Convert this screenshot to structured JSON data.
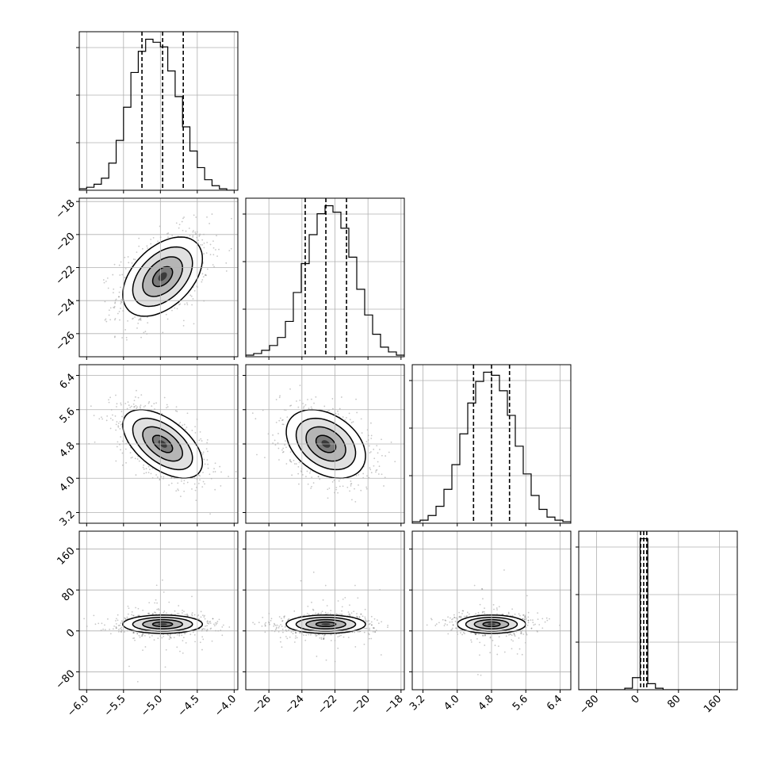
{
  "chart_data": {
    "type": "corner",
    "parameters": [
      {
        "range": [
          -6.1,
          -3.95
        ],
        "ticks": [
          -6.0,
          -5.5,
          -5.0,
          -4.5,
          -4.0
        ],
        "tick_labels": [
          "−6.0",
          "−5.5",
          "−5.0",
          "−4.5",
          "−4.0"
        ],
        "mean": -4.97,
        "sd": 0.27,
        "quantiles": [
          -5.25,
          -4.97,
          -4.69
        ]
      },
      {
        "range": [
          -27.4,
          -17.8
        ],
        "ticks": [
          -26,
          -24,
          -22,
          -20,
          -18
        ],
        "tick_labels": [
          "−26",
          "−24",
          "−22",
          "−20",
          "−18"
        ],
        "mean": -22.55,
        "sd": 1.2,
        "quantiles": [
          -23.8,
          -22.55,
          -21.3
        ]
      },
      {
        "range": [
          2.95,
          6.65
        ],
        "ticks": [
          3.2,
          4.0,
          4.8,
          5.6,
          6.4
        ],
        "tick_labels": [
          "3.2",
          "4.0",
          "4.8",
          "5.6",
          "6.4"
        ],
        "mean": 4.8,
        "sd": 0.4,
        "quantiles": [
          4.38,
          4.8,
          5.22
        ]
      },
      {
        "range": [
          -115,
          195
        ],
        "ticks": [
          -80,
          0,
          80,
          160
        ],
        "tick_labels": [
          "−80",
          "0",
          "80",
          "160"
        ],
        "mean": 13,
        "sd": 9,
        "quantiles": [
          6,
          12,
          18
        ]
      }
    ],
    "histograms": [
      {
        "param": 0,
        "edges": [
          -6.1,
          -6.0,
          -5.9,
          -5.8,
          -5.7,
          -5.6,
          -5.5,
          -5.4,
          -5.3,
          -5.2,
          -5.1,
          -5.0,
          -4.9,
          -4.8,
          -4.7,
          -4.6,
          -4.5,
          -4.4,
          -4.3,
          -4.2,
          -4.1,
          -4.0
        ],
        "counts": [
          1,
          2,
          4,
          8,
          18,
          33,
          55,
          78,
          92,
          100,
          98,
          95,
          79,
          62,
          42,
          26,
          15,
          7,
          3,
          1,
          0
        ]
      },
      {
        "param": 1,
        "edges": [
          -27.4,
          -26.92,
          -26.44,
          -25.96,
          -25.48,
          -25.0,
          -24.52,
          -24.04,
          -23.56,
          -23.08,
          -22.6,
          -22.12,
          -21.64,
          -21.16,
          -20.68,
          -20.2,
          -19.72,
          -19.24,
          -18.76,
          -18.28,
          -17.8
        ],
        "counts": [
          1,
          2,
          4,
          7,
          12,
          22,
          40,
          58,
          76,
          89,
          94,
          90,
          80,
          62,
          42,
          26,
          14,
          6,
          3,
          1
        ]
      },
      {
        "param": 2,
        "edges": [
          2.95,
          3.135,
          3.32,
          3.505,
          3.69,
          3.875,
          4.06,
          4.245,
          4.43,
          4.615,
          4.8,
          4.985,
          5.17,
          5.355,
          5.54,
          5.725,
          5.91,
          6.095,
          6.28,
          6.465,
          6.65
        ],
        "counts": [
          1,
          2,
          5,
          11,
          22,
          38,
          58,
          78,
          92,
          98,
          96,
          86,
          70,
          50,
          32,
          18,
          9,
          4,
          2,
          1
        ]
      },
      {
        "param": 3,
        "edges": [
          -115,
          -100,
          -85,
          -70,
          -55,
          -40,
          -25,
          -10,
          5,
          20,
          35,
          50,
          65,
          80,
          95,
          110,
          125,
          140,
          155,
          170,
          185
        ],
        "counts": [
          0,
          0,
          0,
          0,
          0,
          0,
          1,
          8,
          100,
          4,
          1,
          0,
          0,
          0,
          0,
          0,
          0,
          0,
          0,
          0
        ]
      }
    ],
    "pairs": [
      {
        "x": 0,
        "y": 1,
        "correlation": 0.45
      },
      {
        "x": 0,
        "y": 2,
        "correlation": -0.55
      },
      {
        "x": 1,
        "y": 2,
        "correlation": -0.35
      },
      {
        "x": 0,
        "y": 3,
        "correlation": 0.0
      },
      {
        "x": 1,
        "y": 3,
        "correlation": 0.0
      },
      {
        "x": 2,
        "y": 3,
        "correlation": 0.0
      }
    ],
    "contour_levels_sigma": [
      0.5,
      1.0,
      1.5,
      2.0
    ],
    "grid": true
  }
}
